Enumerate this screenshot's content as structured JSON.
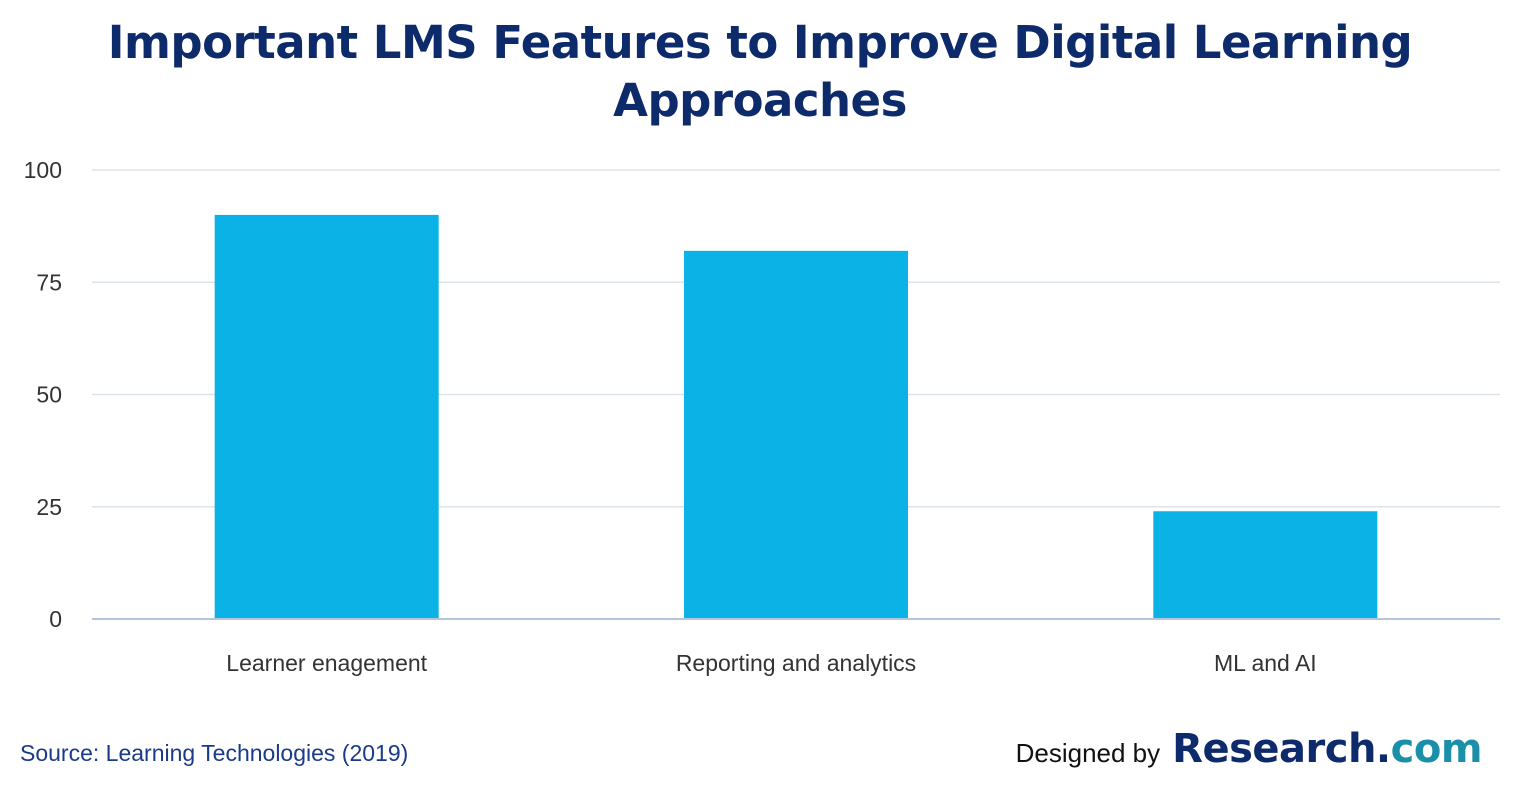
{
  "chart_data": {
    "type": "bar",
    "title": "Important LMS Features to Improve Digital Learning Approaches",
    "categories": [
      "Learner enagement",
      "Reporting and analytics",
      "ML and AI"
    ],
    "values": [
      90,
      82,
      24
    ],
    "ylim": [
      0,
      100
    ],
    "yticks": [
      0,
      25,
      50,
      75,
      100
    ],
    "xlabel": "",
    "ylabel": "",
    "grid": true,
    "bar_color": "#0ab2e6"
  },
  "footer": {
    "source": "Source: Learning Technologies (2019)",
    "designed_by": "Designed by",
    "brand_name": "Research",
    "brand_dot": ".",
    "brand_tld": "com"
  },
  "colors": {
    "title": "#0d2a6b",
    "grid": "#dde3ea",
    "axis": "#b4c4dc",
    "tick_text": "#333333"
  }
}
